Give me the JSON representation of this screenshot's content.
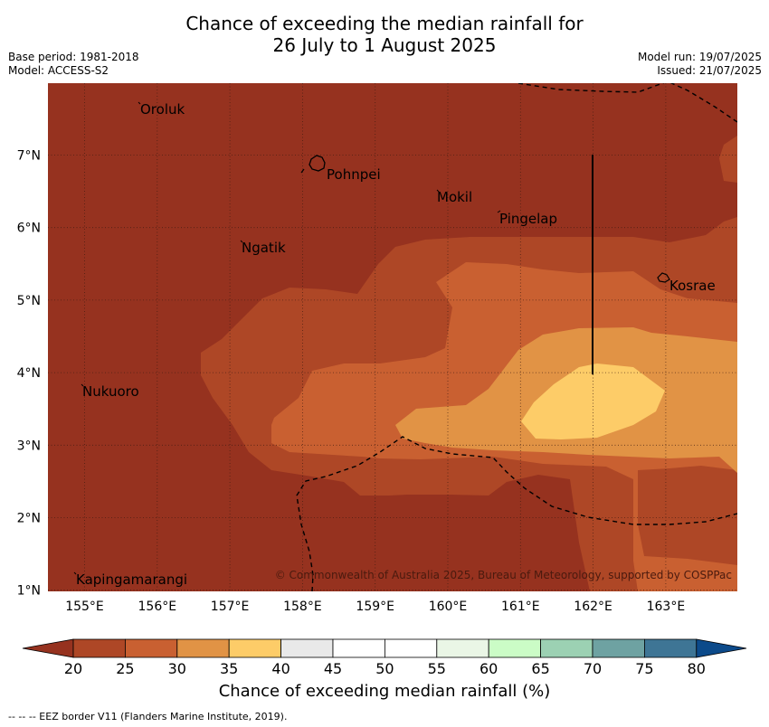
{
  "title": {
    "line1": "Chance of exceeding the median rainfall for",
    "line2": "26 July to 1 August 2025"
  },
  "meta": {
    "base_period": "Base period: 1981-2018",
    "model": "Model: ACCESS-S2",
    "model_run": "Model run: 19/07/2025",
    "issued": "Issued: 21/07/2025"
  },
  "map": {
    "x_ticks": [
      "155°E",
      "156°E",
      "157°E",
      "158°E",
      "159°E",
      "160°E",
      "161°E",
      "162°E",
      "163°E"
    ],
    "y_ticks": [
      "7°N",
      "6°N",
      "5°N",
      "4°N",
      "3°N",
      "2°N",
      "1°N"
    ],
    "places": {
      "oroluk": "Oroluk",
      "pohnpei": "Pohnpei",
      "mokil": "Mokil",
      "pingelap": "Pingelap",
      "ngatik": "Ngatik",
      "kosrae": "Kosrae",
      "nukuoro": "Nukuoro",
      "kapingamarangi": "Kapingamarangi"
    },
    "copyright": "© Commonwealth of Australia 2025, Bureau of Meteorology, supported by COSPPac",
    "colors": {
      "band_20": "#96321f",
      "band_25": "#ae4726",
      "band_30": "#c96031",
      "band_35": "#e19345",
      "band_40": "#fdcc68"
    }
  },
  "colorbar": {
    "labels": [
      "20",
      "25",
      "30",
      "35",
      "40",
      "45",
      "50",
      "55",
      "60",
      "65",
      "70",
      "75",
      "80"
    ],
    "colors": [
      "#ae4726",
      "#c96031",
      "#e19345",
      "#fdcc68",
      "#e9e9e9",
      "#ffffff",
      "#ffffff",
      "#eaf6e6",
      "#cbfcc6",
      "#9cd1b3",
      "#6ea2a2",
      "#3e7595"
    ],
    "under_color": "#96321f",
    "over_color": "#0c4a8a",
    "title": "Chance of exceeding median rainfall (%)"
  },
  "footnote": "-- -- -- EEZ border V11 (Flanders Marine Institute, 2019)."
}
